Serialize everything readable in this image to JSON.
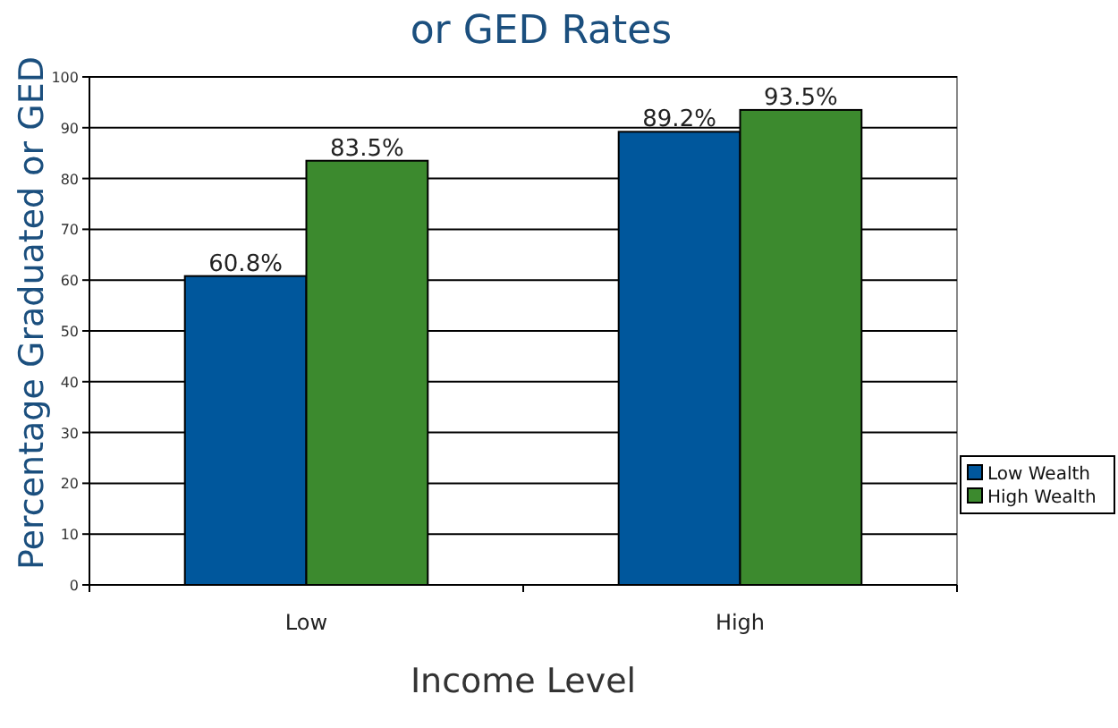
{
  "chart_data": {
    "type": "bar",
    "title": "or GED Rates",
    "xlabel": "Income Level",
    "ylabel": "Percentage Graduated or GED",
    "categories": [
      "Low",
      "High"
    ],
    "series": [
      {
        "name": "Low Wealth",
        "color": "#00579c",
        "values": [
          60.8,
          89.2
        ],
        "value_labels": [
          "60.8%",
          "89.2%"
        ]
      },
      {
        "name": "High Wealth",
        "color": "#3c8a2e",
        "values": [
          83.5,
          93.5
        ],
        "value_labels": [
          "83.5%",
          "93.5%"
        ]
      }
    ],
    "ylim": [
      0,
      100
    ],
    "yticks": [
      0,
      10,
      20,
      30,
      40,
      50,
      60,
      70,
      80,
      90,
      100
    ],
    "grid": "y",
    "legend": "right"
  }
}
